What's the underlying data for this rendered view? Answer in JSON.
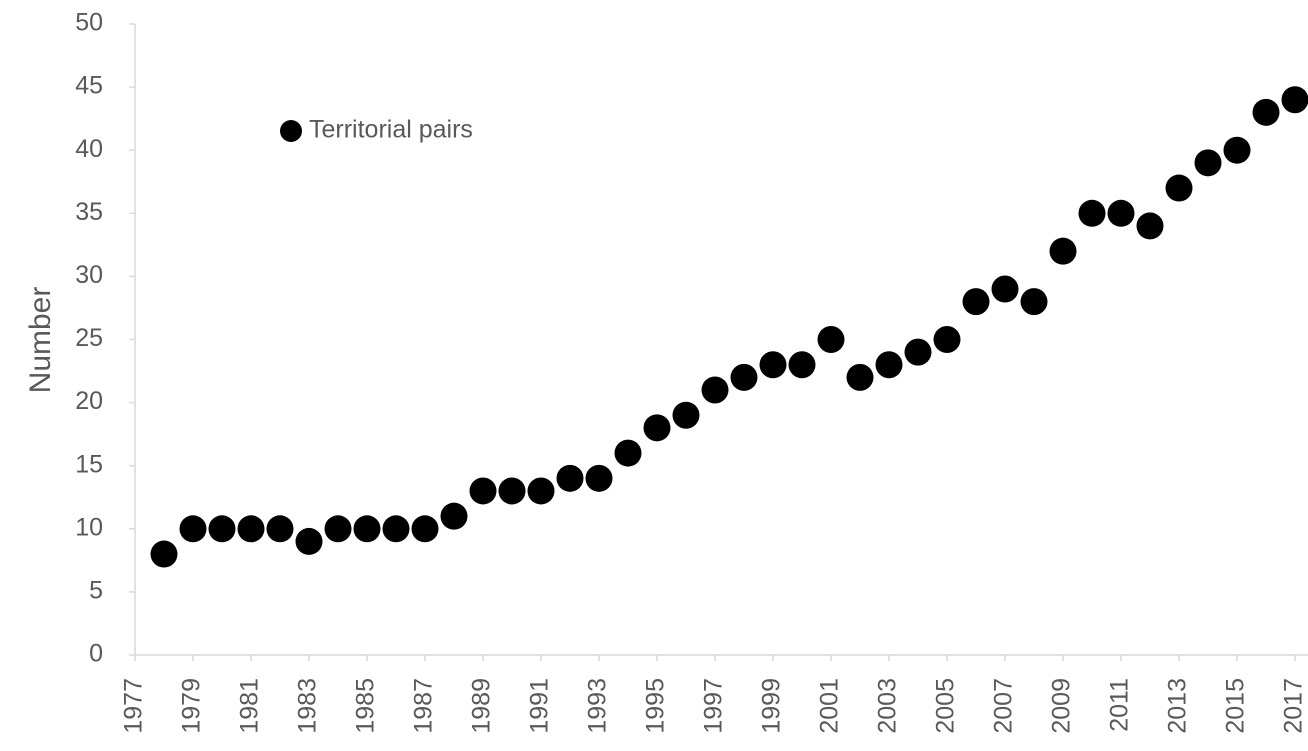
{
  "chart_data": {
    "type": "scatter",
    "y_label": "Number",
    "x": [
      1978,
      1979,
      1980,
      1981,
      1982,
      1983,
      1984,
      1985,
      1986,
      1987,
      1988,
      1989,
      1990,
      1991,
      1992,
      1993,
      1994,
      1995,
      1996,
      1997,
      1998,
      1999,
      2000,
      2001,
      2002,
      2003,
      2004,
      2005,
      2006,
      2007,
      2008,
      2009,
      2010,
      2011,
      2012,
      2013,
      2014,
      2015,
      2016,
      2017
    ],
    "series": [
      {
        "name": "Territorial pairs",
        "color": "#000000",
        "values": [
          8,
          10,
          10,
          10,
          10,
          9,
          10,
          10,
          10,
          10,
          11,
          13,
          13,
          13,
          14,
          14,
          16,
          18,
          19,
          21,
          22,
          23,
          23,
          25,
          22,
          23,
          24,
          25,
          28,
          29,
          28,
          32,
          35,
          35,
          34,
          37,
          39,
          40,
          43,
          44
        ]
      }
    ],
    "xlim": [
      1977,
      2017
    ],
    "xticks": [
      1977,
      1979,
      1981,
      1983,
      1985,
      1987,
      1989,
      1991,
      1993,
      1995,
      1997,
      1999,
      2001,
      2003,
      2005,
      2007,
      2009,
      2011,
      2013,
      2015,
      2017
    ],
    "ylim": [
      0,
      50
    ],
    "yticks": [
      0,
      5,
      10,
      15,
      20,
      25,
      30,
      35,
      40,
      45,
      50
    ],
    "grid": false,
    "legend": "upper-left"
  }
}
